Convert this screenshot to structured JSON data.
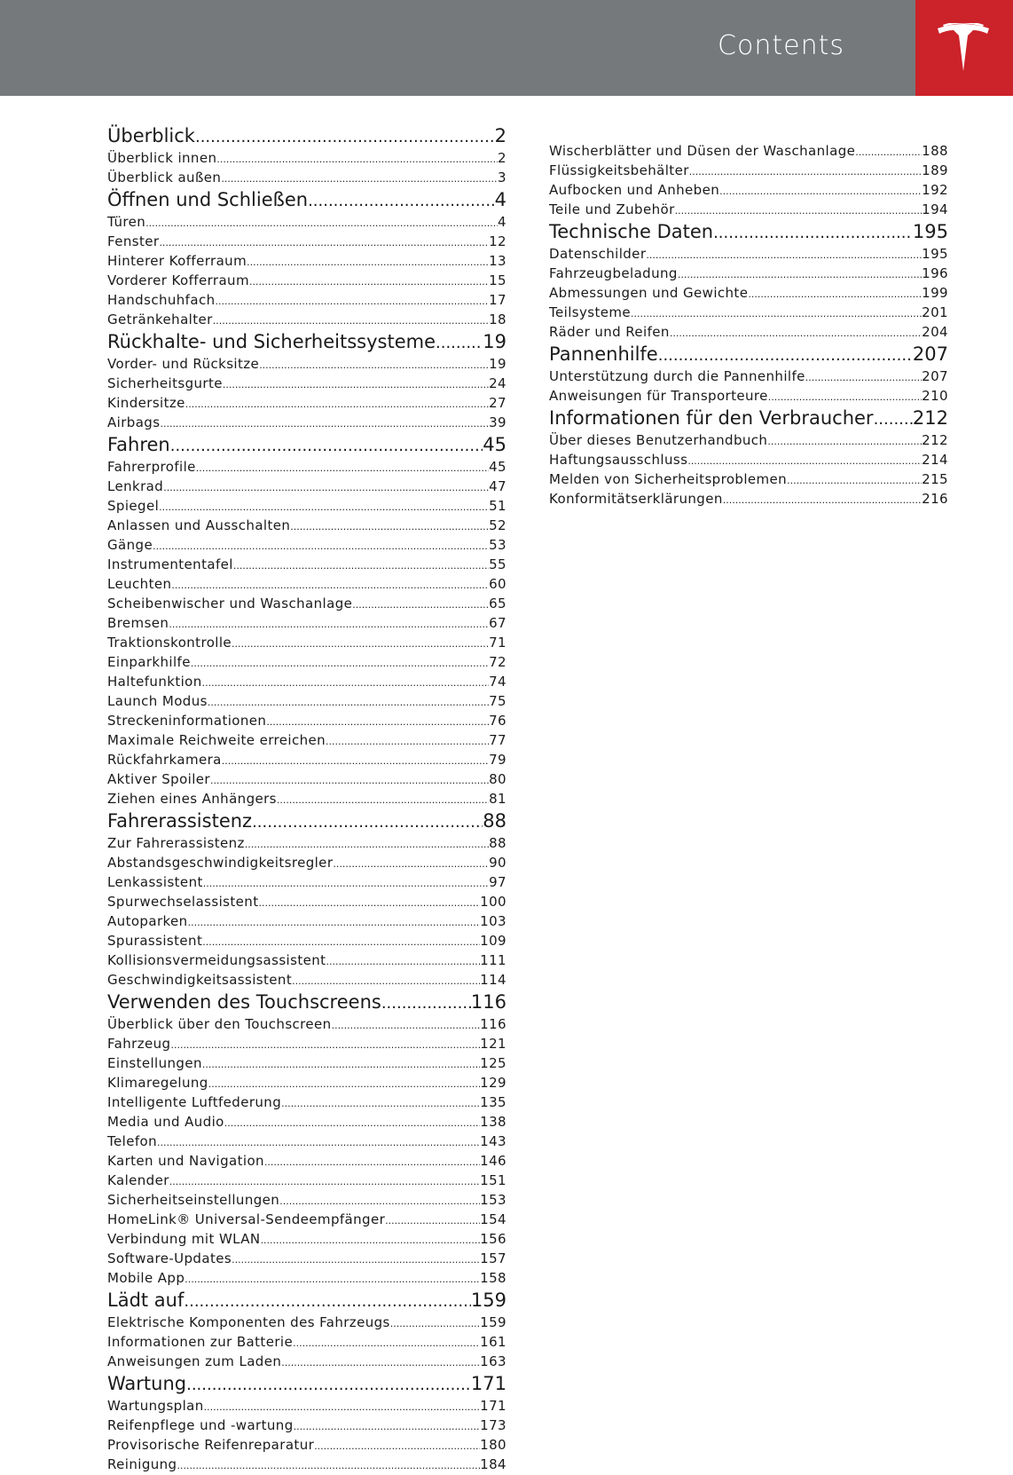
{
  "header": {
    "title": "Contents",
    "brand_color": "#cc2229",
    "bar_color": "#76797c",
    "logo": "tesla-logo"
  },
  "left": [
    {
      "title": "Überblick",
      "page": "2",
      "items": [
        [
          "Überblick innen",
          "2"
        ],
        [
          "Überblick außen",
          "3"
        ]
      ]
    },
    {
      "title": "Öffnen und Schließen",
      "page": "4",
      "items": [
        [
          "Türen",
          "4"
        ],
        [
          "Fenster",
          "12"
        ],
        [
          "Hinterer Kofferraum",
          "13"
        ],
        [
          "Vorderer Kofferraum",
          "15"
        ],
        [
          "Handschuhfach",
          "17"
        ],
        [
          "Getränkehalter",
          "18"
        ]
      ]
    },
    {
      "title": "Rückhalte- und Sicherheitssysteme",
      "page": "19",
      "items": [
        [
          "Vorder- und Rücksitze",
          "19"
        ],
        [
          "Sicherheitsgurte",
          "24"
        ],
        [
          "Kindersitze",
          "27"
        ],
        [
          "Airbags",
          "39"
        ]
      ]
    },
    {
      "title": "Fahren",
      "page": "45",
      "items": [
        [
          "Fahrerprofile",
          "45"
        ],
        [
          "Lenkrad",
          "47"
        ],
        [
          "Spiegel",
          "51"
        ],
        [
          "Anlassen und Ausschalten",
          "52"
        ],
        [
          "Gänge",
          "53"
        ],
        [
          "Instrumententafel",
          "55"
        ],
        [
          "Leuchten",
          "60"
        ],
        [
          "Scheibenwischer und Waschanlage",
          "65"
        ],
        [
          "Bremsen",
          "67"
        ],
        [
          "Traktionskontrolle",
          "71"
        ],
        [
          "Einparkhilfe",
          "72"
        ],
        [
          "Haltefunktion",
          "74"
        ],
        [
          "Launch Modus",
          "75"
        ],
        [
          "Streckeninformationen",
          "76"
        ],
        [
          "Maximale Reichweite erreichen",
          "77"
        ],
        [
          "Rückfahrkamera",
          "79"
        ],
        [
          "Aktiver Spoiler",
          "80"
        ],
        [
          "Ziehen eines Anhängers",
          "81"
        ]
      ]
    },
    {
      "title": "Fahrerassistenz",
      "page": "88",
      "items": [
        [
          "Zur Fahrerassistenz",
          "88"
        ],
        [
          "Abstandsgeschwindigkeitsregler",
          "90"
        ],
        [
          "Lenkassistent",
          "97"
        ],
        [
          "Spurwechselassistent",
          "100"
        ],
        [
          "Autoparken",
          "103"
        ],
        [
          "Spurassistent",
          "109"
        ],
        [
          "Kollisionsvermeidungsassistent",
          "111"
        ],
        [
          "Geschwindigkeitsassistent",
          "114"
        ]
      ]
    },
    {
      "title": "Verwenden des Touchscreens",
      "page": "116",
      "items": [
        [
          "Überblick über den Touchscreen",
          "116"
        ],
        [
          "Fahrzeug",
          "121"
        ],
        [
          "Einstellungen",
          "125"
        ],
        [
          "Klimaregelung",
          "129"
        ],
        [
          "Intelligente Luftfederung",
          "135"
        ],
        [
          "Media und Audio",
          "138"
        ],
        [
          "Telefon",
          "143"
        ],
        [
          "Karten und Navigation",
          "146"
        ],
        [
          "Kalender",
          "151"
        ],
        [
          "Sicherheitseinstellungen",
          "153"
        ],
        [
          "HomeLink® Universal-Sendeempfänger",
          "154"
        ],
        [
          "Verbindung mit WLAN",
          "156"
        ],
        [
          "Software-Updates",
          "157"
        ],
        [
          "Mobile App",
          "158"
        ]
      ]
    },
    {
      "title": "Lädt auf",
      "page": "159",
      "items": [
        [
          "Elektrische Komponenten des Fahrzeugs",
          "159"
        ],
        [
          "Informationen zur Batterie",
          "161"
        ],
        [
          "Anweisungen zum Laden",
          "163"
        ]
      ]
    },
    {
      "title": "Wartung",
      "page": "171",
      "items": [
        [
          "Wartungsplan",
          "171"
        ],
        [
          "Reifenpflege und -wartung",
          "173"
        ],
        [
          "Provisorische Reifenreparatur",
          "180"
        ],
        [
          "Reinigung",
          "184"
        ]
      ]
    }
  ],
  "right": [
    {
      "title": "",
      "page": "",
      "items": [
        [
          "Wischerblätter und Düsen der Waschanlage",
          "188"
        ],
        [
          "Flüssigkeitsbehälter",
          "189"
        ],
        [
          "Aufbocken und Anheben",
          "192"
        ],
        [
          "Teile und Zubehör",
          "194"
        ]
      ]
    },
    {
      "title": "Technische Daten",
      "page": "195",
      "items": [
        [
          "Datenschilder",
          "195"
        ],
        [
          "Fahrzeugbeladung",
          "196"
        ],
        [
          "Abmessungen und Gewichte",
          "199"
        ],
        [
          "Teilsysteme",
          "201"
        ],
        [
          "Räder und Reifen",
          "204"
        ]
      ]
    },
    {
      "title": "Pannenhilfe",
      "page": "207",
      "items": [
        [
          "Unterstützung durch die Pannenhilfe",
          "207"
        ],
        [
          "Anweisungen für Transporteure",
          "210"
        ]
      ]
    },
    {
      "title": "Informationen für den Verbraucher",
      "page": "212",
      "items": [
        [
          "Über dieses Benutzerhandbuch",
          "212"
        ],
        [
          "Haftungsausschluss",
          "214"
        ],
        [
          "Melden von Sicherheitsproblemen",
          "215"
        ],
        [
          "Konformitätserklärungen",
          "216"
        ]
      ]
    }
  ]
}
